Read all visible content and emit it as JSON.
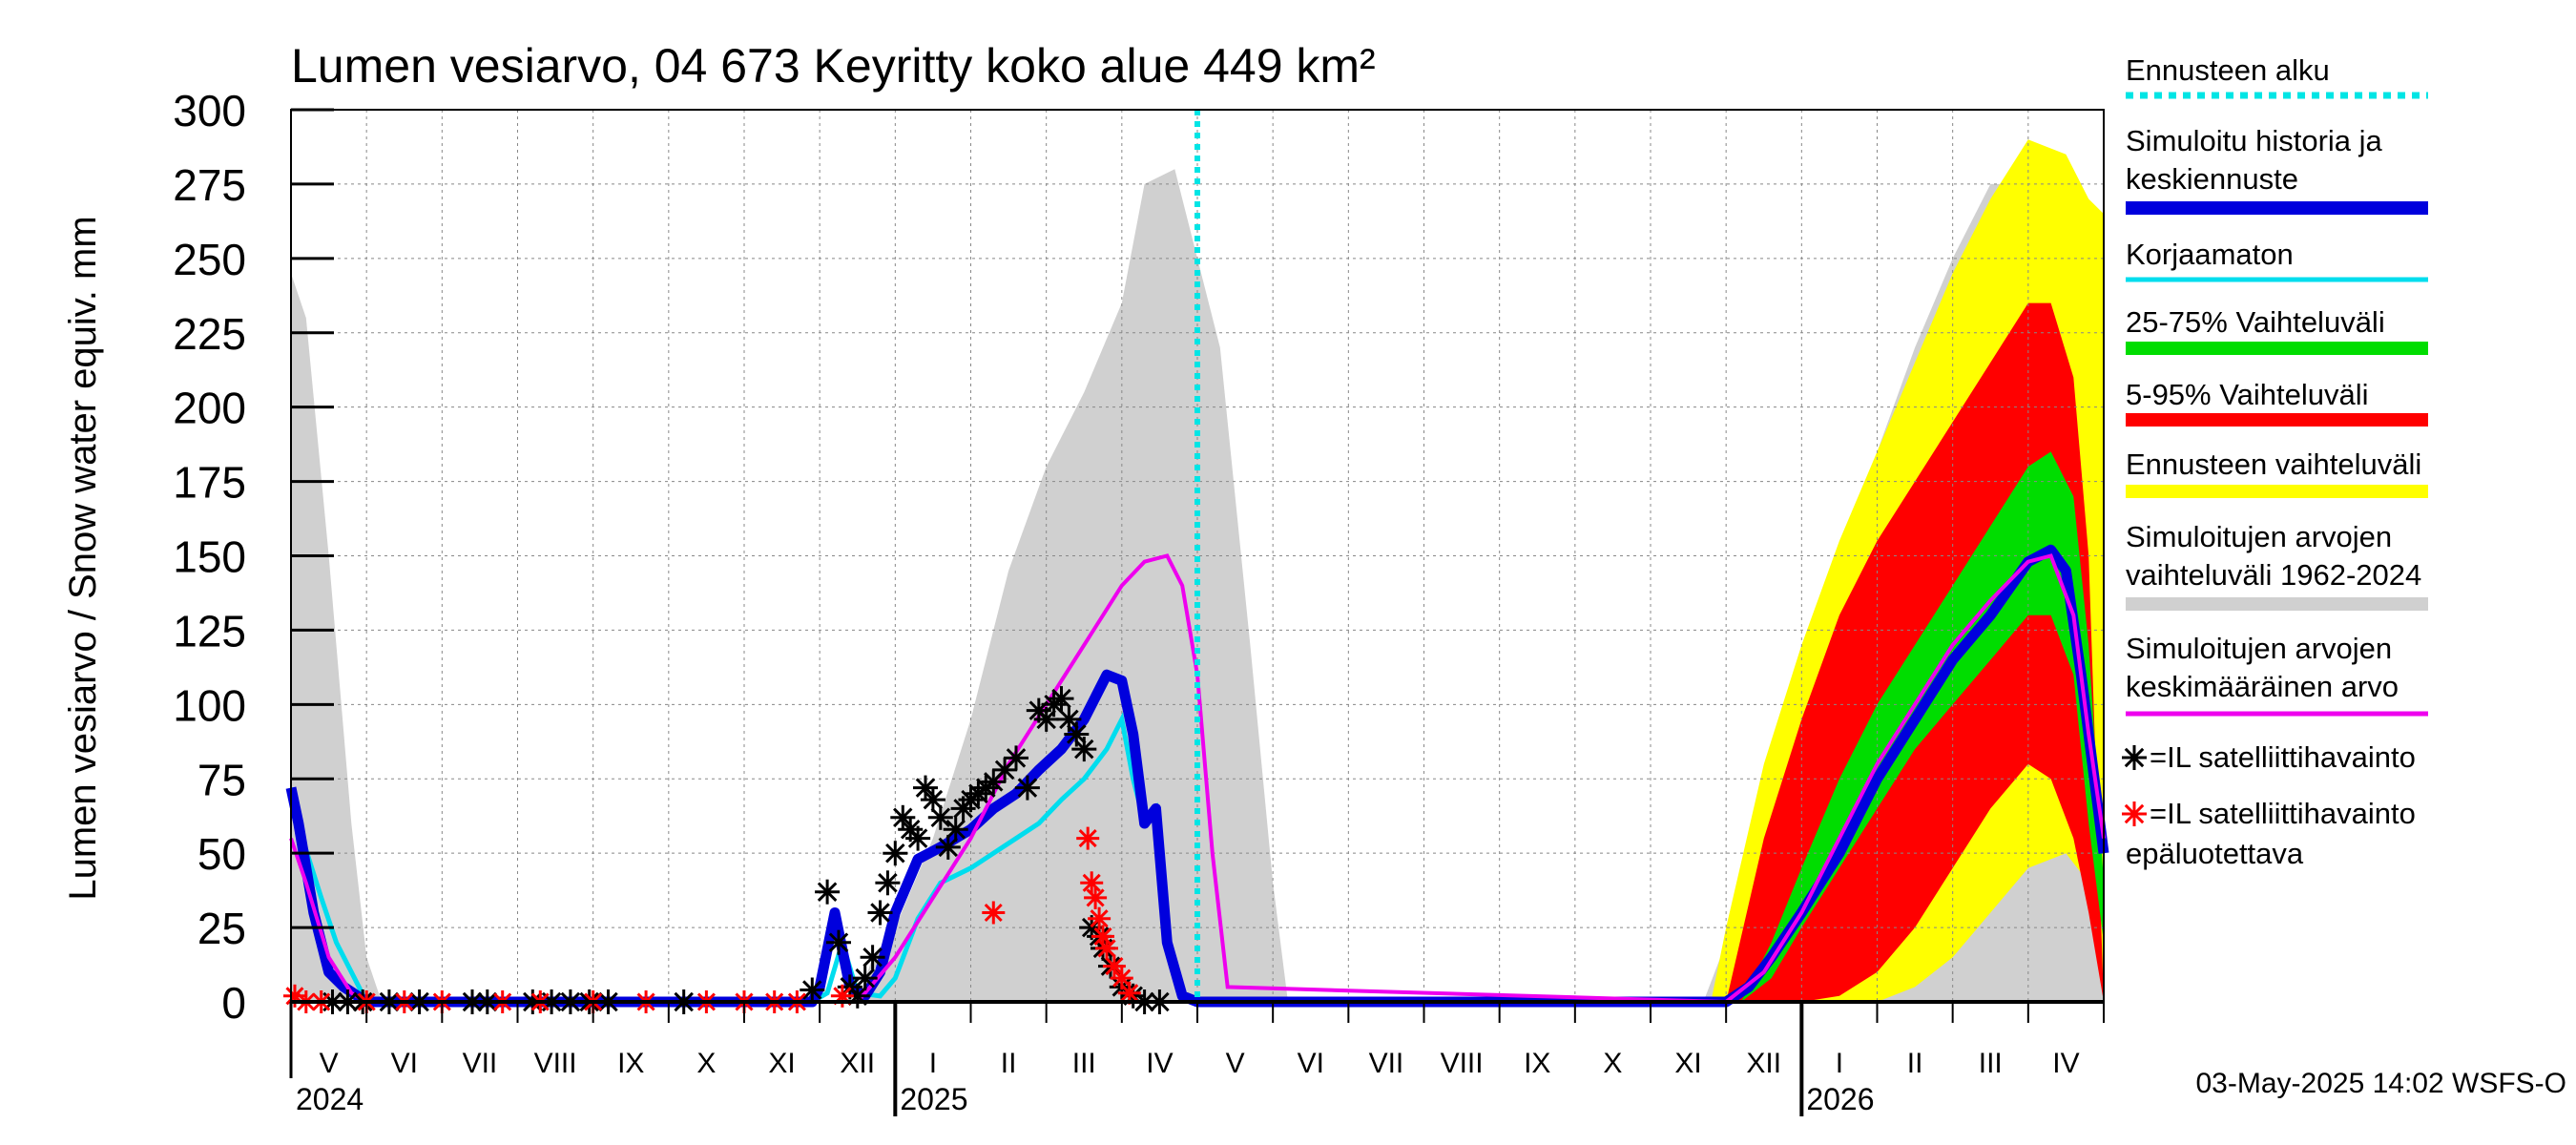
{
  "chart_data": {
    "type": "area",
    "title": "Lumen vesiarvo, 04 673 Keyritty koko alue 449 km²",
    "ylabel": "Lumen vesiarvo / Snow water equiv.    mm",
    "ylim": [
      0,
      300
    ],
    "yticks": [
      "0",
      "25",
      "50",
      "75",
      "100",
      "125",
      "150",
      "175",
      "200",
      "225",
      "250",
      "275",
      "300"
    ],
    "grid": true,
    "legend_position": "right",
    "months": [
      "V",
      "VI",
      "VII",
      "VIII",
      "IX",
      "X",
      "XI",
      "XII",
      "I",
      "II",
      "III",
      "IV",
      "V",
      "VI",
      "VII",
      "VIII",
      "IX",
      "X",
      "XI",
      "XII",
      "I",
      "II",
      "III",
      "IV"
    ],
    "years": [
      "2024",
      "2025",
      "2026"
    ],
    "forecast_start_month_index": 12,
    "timestamp": "03-May-2025 14:02 WSFS-O",
    "legend": [
      {
        "label": "Ennusteen alku",
        "color": "#00e5e5",
        "style": "dotted"
      },
      {
        "label": "Simuloitu historia ja keskiennuste",
        "color": "#0000dd",
        "style": "thick"
      },
      {
        "label": "Korjaamaton",
        "color": "#00ddee",
        "style": "line"
      },
      {
        "label": "25-75% Vaihteluväli",
        "color": "#00dd00",
        "style": "band"
      },
      {
        "label": "5-95% Vaihteluväli",
        "color": "#ff0000",
        "style": "band"
      },
      {
        "label": "Ennusteen vaihteluväli",
        "color": "#ffff00",
        "style": "band"
      },
      {
        "label": "Simuloitujen arvojen vaihteluväli 1962-2024",
        "color": "#d0d0d0",
        "style": "band"
      },
      {
        "label": "Simuloitujen arvojen keskimääräinen arvo",
        "color": "#ee00ee",
        "style": "line"
      },
      {
        "label": "=IL satelliittihavainto",
        "color": "#000000",
        "style": "star"
      },
      {
        "label": "=IL satelliittihavainto epäluotettava",
        "color": "#ff0000",
        "style": "star"
      }
    ],
    "series": {
      "historical_range": {
        "color": "#d0d0d0",
        "x": [
          0,
          0.2,
          0.5,
          0.8,
          1.0,
          1.2,
          7.5,
          7.7,
          8.0,
          8.5,
          9.0,
          9.5,
          10.0,
          10.5,
          11.0,
          11.3,
          11.7,
          12.0,
          12.3,
          12.7,
          13.0,
          13.2,
          18.7,
          19.0,
          19.5,
          20.0,
          20.5,
          21.0,
          21.5,
          22.0,
          22.5,
          23.0,
          23.5,
          24.0
        ],
        "lo": [
          0,
          0,
          0,
          0,
          0,
          0,
          0,
          0,
          0,
          0,
          0,
          0,
          0,
          0,
          0,
          0,
          0,
          0,
          0,
          0,
          0,
          0,
          0,
          0,
          0,
          0,
          0,
          0,
          0,
          0,
          0,
          0,
          0,
          0
        ],
        "hi": [
          245,
          230,
          150,
          60,
          15,
          0,
          0,
          15,
          25,
          55,
          95,
          145,
          180,
          205,
          235,
          275,
          280,
          250,
          220,
          120,
          40,
          0,
          0,
          20,
          70,
          110,
          150,
          185,
          220,
          250,
          275,
          275,
          250,
          245
        ]
      },
      "forecast_range": {
        "color": "#ffff00",
        "x": [
          18.8,
          19.0,
          19.5,
          20.0,
          20.5,
          21.0,
          21.5,
          22.0,
          22.5,
          23.0,
          23.5,
          23.8,
          24.0
        ],
        "lo": [
          0,
          0,
          0,
          0,
          0,
          0,
          5,
          15,
          30,
          45,
          50,
          40,
          0
        ],
        "hi": [
          0,
          25,
          80,
          120,
          155,
          185,
          215,
          245,
          270,
          290,
          285,
          270,
          265
        ]
      },
      "p5_95": {
        "color": "#ff0000",
        "x": [
          19.0,
          19.5,
          20.0,
          20.5,
          21.0,
          21.5,
          22.0,
          22.5,
          23.0,
          23.3,
          23.6,
          23.8,
          24.0
        ],
        "lo": [
          0,
          0,
          0,
          2,
          10,
          25,
          45,
          65,
          80,
          75,
          55,
          30,
          0
        ],
        "hi": [
          0,
          55,
          95,
          130,
          155,
          175,
          195,
          215,
          235,
          235,
          210,
          150,
          0
        ]
      },
      "p25_75": {
        "color": "#00dd00",
        "x": [
          19.2,
          19.6,
          20.0,
          20.5,
          21.0,
          21.5,
          22.0,
          22.5,
          23.0,
          23.3,
          23.6,
          23.8,
          24.0
        ],
        "lo": [
          0,
          8,
          25,
          45,
          65,
          85,
          100,
          115,
          130,
          130,
          110,
          60,
          20
        ],
        "hi": [
          0,
          20,
          45,
          75,
          100,
          120,
          140,
          160,
          180,
          185,
          170,
          120,
          40
        ]
      },
      "mean": {
        "color": "#ee00ee",
        "x": [
          0,
          0.2,
          0.5,
          0.8,
          1.0,
          7.5,
          8.0,
          8.5,
          9.0,
          9.5,
          10.0,
          10.5,
          11.0,
          11.3,
          11.6,
          11.8,
          12.0,
          12.2,
          12.4,
          19.0,
          19.5,
          20.0,
          20.5,
          21.0,
          21.5,
          22.0,
          22.5,
          23.0,
          23.3,
          23.6,
          23.8,
          24.0
        ],
        "y": [
          55,
          40,
          15,
          3,
          0,
          0,
          15,
          35,
          55,
          80,
          100,
          120,
          140,
          148,
          150,
          140,
          110,
          50,
          5,
          0,
          10,
          30,
          55,
          80,
          100,
          120,
          135,
          148,
          150,
          130,
          90,
          55
        ]
      },
      "simulated": {
        "color": "#0000dd",
        "x": [
          0,
          0.1,
          0.3,
          0.5,
          0.7,
          1.0,
          6.9,
          7.0,
          7.2,
          7.4,
          7.6,
          7.8,
          8.0,
          8.3,
          8.6,
          9.0,
          9.3,
          9.6,
          9.9,
          10.2,
          10.5,
          10.8,
          11.0,
          11.15,
          11.3,
          11.45,
          11.6,
          11.8,
          12.0,
          19.0,
          19.3,
          19.6,
          20.0,
          20.5,
          21.0,
          21.5,
          22.0,
          22.5,
          23.0,
          23.3,
          23.5,
          23.7,
          24.0
        ],
        "y": [
          72,
          60,
          30,
          10,
          5,
          0,
          0,
          5,
          30,
          5,
          2,
          10,
          30,
          48,
          52,
          58,
          65,
          70,
          78,
          85,
          95,
          110,
          108,
          90,
          60,
          65,
          20,
          2,
          0,
          0,
          5,
          15,
          30,
          50,
          75,
          95,
          115,
          130,
          148,
          152,
          145,
          110,
          50
        ]
      },
      "uncorrected": {
        "color": "#00ddee",
        "x": [
          0,
          0.15,
          0.4,
          0.6,
          0.8,
          1.0,
          6.9,
          7.1,
          7.3,
          7.5,
          7.8,
          8.0,
          8.3,
          8.6,
          9.0,
          9.3,
          9.6,
          9.9,
          10.2,
          10.5,
          10.8,
          11.0,
          11.15,
          11.3,
          11.45,
          11.6,
          11.8,
          12.0
        ],
        "y": [
          72,
          55,
          35,
          20,
          10,
          0,
          0,
          3,
          20,
          3,
          2,
          8,
          28,
          40,
          45,
          50,
          55,
          60,
          68,
          75,
          85,
          95,
          75,
          60,
          65,
          20,
          2,
          0
        ]
      },
      "observations": [
        [
          0.55,
          0
        ],
        [
          0.75,
          0
        ],
        [
          0.95,
          0
        ],
        [
          1.3,
          0
        ],
        [
          1.7,
          0
        ],
        [
          2.4,
          0
        ],
        [
          2.6,
          0
        ],
        [
          3.2,
          0
        ],
        [
          3.45,
          0
        ],
        [
          3.7,
          0
        ],
        [
          3.95,
          0
        ],
        [
          4.2,
          0
        ],
        [
          5.2,
          0
        ],
        [
          6.9,
          4
        ],
        [
          7.1,
          37
        ],
        [
          7.25,
          20
        ],
        [
          7.4,
          5
        ],
        [
          7.5,
          2
        ],
        [
          7.6,
          8
        ],
        [
          7.7,
          15
        ],
        [
          7.8,
          30
        ],
        [
          7.9,
          40
        ],
        [
          8.0,
          50
        ],
        [
          8.1,
          62
        ],
        [
          8.2,
          58
        ],
        [
          8.3,
          55
        ],
        [
          8.4,
          72
        ],
        [
          8.5,
          68
        ],
        [
          8.6,
          62
        ],
        [
          8.7,
          52
        ],
        [
          8.8,
          58
        ],
        [
          8.9,
          65
        ],
        [
          9.0,
          68
        ],
        [
          9.1,
          70
        ],
        [
          9.2,
          72
        ],
        [
          9.3,
          74
        ],
        [
          9.45,
          78
        ],
        [
          9.6,
          82
        ],
        [
          9.75,
          72
        ],
        [
          9.9,
          98
        ],
        [
          10.0,
          95
        ],
        [
          10.1,
          100
        ],
        [
          10.2,
          102
        ],
        [
          10.3,
          95
        ],
        [
          10.4,
          90
        ],
        [
          10.5,
          85
        ],
        [
          10.6,
          25
        ],
        [
          10.7,
          22
        ],
        [
          10.75,
          18
        ],
        [
          10.85,
          12
        ],
        [
          11.0,
          5
        ],
        [
          11.15,
          2
        ],
        [
          11.3,
          0
        ],
        [
          11.5,
          0
        ]
      ],
      "observations_unreliable": [
        [
          0.05,
          2
        ],
        [
          0.2,
          0
        ],
        [
          0.4,
          0
        ],
        [
          1.0,
          0
        ],
        [
          1.5,
          0
        ],
        [
          2.0,
          0
        ],
        [
          2.8,
          0
        ],
        [
          3.3,
          0
        ],
        [
          4.0,
          0
        ],
        [
          4.7,
          0
        ],
        [
          5.5,
          0
        ],
        [
          6.0,
          0
        ],
        [
          6.4,
          0
        ],
        [
          6.7,
          0
        ],
        [
          7.3,
          2
        ],
        [
          9.3,
          30
        ],
        [
          10.55,
          55
        ],
        [
          10.6,
          40
        ],
        [
          10.65,
          35
        ],
        [
          10.7,
          28
        ],
        [
          10.75,
          22
        ],
        [
          10.8,
          18
        ],
        [
          10.9,
          12
        ],
        [
          11.0,
          8
        ],
        [
          11.1,
          3
        ]
      ]
    }
  }
}
